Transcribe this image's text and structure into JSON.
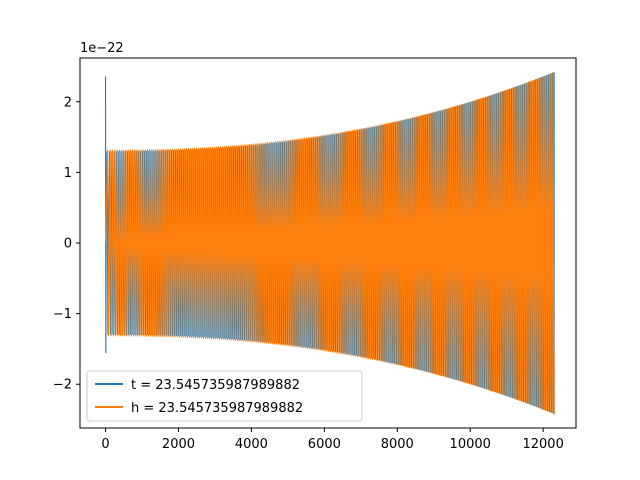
{
  "chart_data": {
    "type": "line",
    "offset_label": "1e−22",
    "xlim": [
      -700,
      12900
    ],
    "ylim": [
      -2.62,
      2.62
    ],
    "xticks": [
      {
        "value": 0,
        "label": "0"
      },
      {
        "value": 2000,
        "label": "2000"
      },
      {
        "value": 4000,
        "label": "4000"
      },
      {
        "value": 6000,
        "label": "6000"
      },
      {
        "value": 8000,
        "label": "8000"
      },
      {
        "value": 10000,
        "label": "10000"
      },
      {
        "value": 12000,
        "label": "12000"
      }
    ],
    "yticks": [
      {
        "value": -2,
        "label": "−2"
      },
      {
        "value": -1,
        "label": "−1"
      },
      {
        "value": 0,
        "label": "0"
      },
      {
        "value": 1,
        "label": "1"
      },
      {
        "value": 2,
        "label": "2"
      }
    ],
    "grid": false,
    "legend_position": "lower-left",
    "series": [
      {
        "name": "t = 23.545735987989882",
        "color": "#1f77b4",
        "x_range": [
          0,
          12300
        ],
        "spike": {
          "max": 2.36,
          "min": -1.56
        },
        "envelope": {
          "start": 1.3,
          "end": 2.42
        },
        "end_value": -1.55
      },
      {
        "name": "h = 23.545735987989882",
        "color": "#ff7f0e",
        "x_range": [
          0,
          12300
        ],
        "envelope": {
          "start": 1.32,
          "end": 2.42
        },
        "end_value": -1.57
      }
    ]
  }
}
